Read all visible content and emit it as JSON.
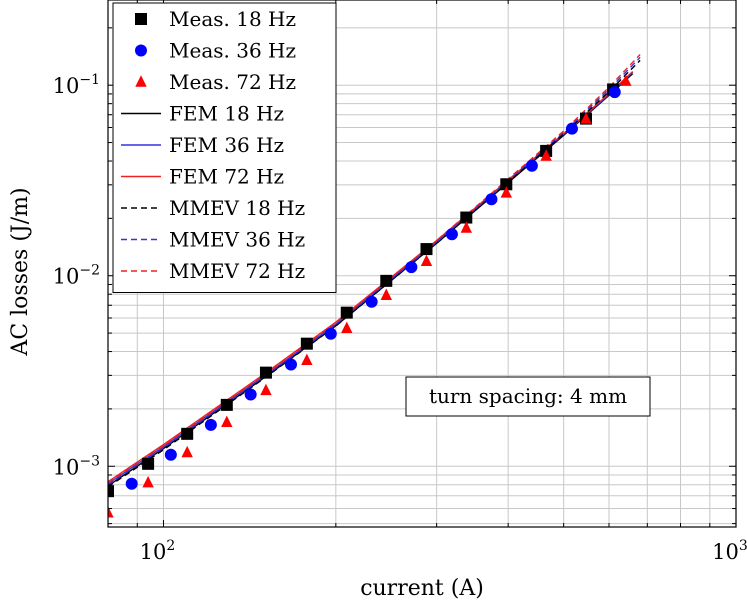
{
  "chart_data": {
    "type": "scatter",
    "title": "",
    "xlabel": "current (A)",
    "ylabel": "AC losses (J/m)",
    "xscale": "log",
    "yscale": "log",
    "xlim": [
      80,
      1000
    ],
    "ylim": [
      0.00048,
      0.28
    ],
    "grid": true,
    "x_ticks": [
      {
        "value": 100,
        "base": "10",
        "exp": "2"
      },
      {
        "value": 1000,
        "base": "10",
        "exp": "3"
      }
    ],
    "y_ticks": [
      {
        "value": 0.001,
        "base": "10",
        "exp": "−3"
      },
      {
        "value": 0.01,
        "base": "10",
        "exp": "−2"
      },
      {
        "value": 0.1,
        "base": "10",
        "exp": "−1"
      }
    ],
    "legend_position": "top-left",
    "series": [
      {
        "name": "Meas. 18 Hz",
        "kind": "marker",
        "marker": "square",
        "color": "#000000",
        "x": [
          80,
          94,
          110,
          129,
          151,
          178,
          209,
          245,
          288,
          338,
          397,
          466,
          547,
          610
        ],
        "y": [
          0.00074,
          0.00103,
          0.00148,
          0.0021,
          0.0031,
          0.0044,
          0.0064,
          0.0094,
          0.0138,
          0.0202,
          0.0302,
          0.0452,
          0.0668,
          0.095
        ]
      },
      {
        "name": "Meas. 36 Hz",
        "kind": "marker",
        "marker": "circle",
        "color": "#0000ff",
        "x": [
          88,
          103,
          121,
          142,
          167,
          196,
          231,
          271,
          319,
          374,
          440,
          517,
          614
        ],
        "y": [
          0.00081,
          0.00115,
          0.00165,
          0.00238,
          0.00342,
          0.00496,
          0.0073,
          0.0111,
          0.0165,
          0.0252,
          0.0378,
          0.0592,
          0.092
        ]
      },
      {
        "name": "Meas. 72 Hz",
        "kind": "marker",
        "marker": "triangle",
        "color": "#ff0000",
        "x": [
          80,
          94,
          110,
          129,
          151,
          178,
          209,
          245,
          288,
          338,
          397,
          466,
          547,
          642
        ],
        "y": [
          0.00057,
          0.00082,
          0.00118,
          0.0017,
          0.0025,
          0.0036,
          0.0053,
          0.0079,
          0.0119,
          0.0178,
          0.0272,
          0.0425,
          0.0665,
          0.105
        ]
      },
      {
        "name": "FEM 18 Hz",
        "kind": "line",
        "dash": false,
        "color": "#000000",
        "x": [
          80,
          100,
          150,
          200,
          300,
          400,
          500,
          600,
          660
        ],
        "y": [
          0.00079,
          0.00124,
          0.00292,
          0.00546,
          0.0148,
          0.0308,
          0.0546,
          0.0885,
          0.115
        ]
      },
      {
        "name": "FEM 36 Hz",
        "kind": "line",
        "dash": false,
        "color": "#3333dd",
        "x": [
          80,
          100,
          150,
          200,
          300,
          400,
          500,
          600,
          660
        ],
        "y": [
          0.00081,
          0.00127,
          0.00298,
          0.00557,
          0.0151,
          0.0313,
          0.0552,
          0.0893,
          0.117
        ]
      },
      {
        "name": "FEM 72 Hz",
        "kind": "line",
        "dash": false,
        "color": "#ee2222",
        "x": [
          80,
          100,
          150,
          200,
          300,
          400,
          500,
          600,
          660
        ],
        "y": [
          0.00083,
          0.0013,
          0.00305,
          0.0057,
          0.0153,
          0.0318,
          0.0558,
          0.0903,
          0.118
        ]
      },
      {
        "name": "MMEV 18 Hz",
        "kind": "line",
        "dash": true,
        "color": "#000000",
        "x": [
          80,
          100,
          150,
          200,
          300,
          400,
          500,
          600,
          680
        ],
        "y": [
          0.00078,
          0.00122,
          0.0029,
          0.00545,
          0.0148,
          0.031,
          0.0555,
          0.0925,
          0.135
        ]
      },
      {
        "name": "MMEV 36 Hz",
        "kind": "line",
        "dash": true,
        "color": "#3333dd",
        "x": [
          80,
          100,
          150,
          200,
          300,
          400,
          500,
          600,
          680
        ],
        "y": [
          0.0008,
          0.00125,
          0.00296,
          0.00555,
          0.015,
          0.0316,
          0.0565,
          0.095,
          0.14
        ]
      },
      {
        "name": "MMEV 72 Hz",
        "kind": "line",
        "dash": true,
        "color": "#ee2222",
        "x": [
          80,
          100,
          150,
          200,
          300,
          400,
          500,
          600,
          680
        ],
        "y": [
          0.00082,
          0.00128,
          0.00302,
          0.00565,
          0.0153,
          0.0322,
          0.0575,
          0.0975,
          0.145
        ]
      }
    ],
    "annotations": [
      {
        "text": "turn spacing: 4 mm",
        "position": "lower-right"
      }
    ]
  }
}
